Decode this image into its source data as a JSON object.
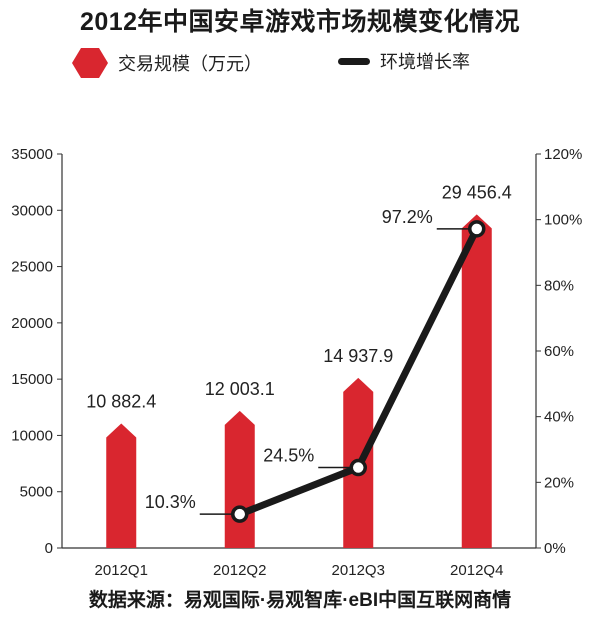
{
  "title": "2012年中国安卓游戏市场规模变化情况",
  "source": "数据来源：易观国际·易观智库·eBI中国互联网商情",
  "colors": {
    "bar": "#d9262f",
    "line": "#1a1a1a",
    "axis": "#333333"
  },
  "chart_data": {
    "type": "bar",
    "title": "2012年中国安卓游戏市场规模变化情况",
    "categories": [
      "2012Q1",
      "2012Q2",
      "2012Q3",
      "2012Q4"
    ],
    "series": [
      {
        "name": "交易规模（万元）",
        "type": "bar",
        "axis": "left",
        "values": [
          10882.4,
          12003.1,
          14937.9,
          29456.4
        ],
        "labels": [
          "10 882.4",
          "12 003.1",
          "14 937.9",
          "29 456.4"
        ]
      },
      {
        "name": "环境增长率",
        "type": "line",
        "axis": "right",
        "values": [
          null,
          10.3,
          24.5,
          97.2
        ],
        "labels": [
          "",
          "10.3%",
          "24.5%",
          "97.2%"
        ]
      }
    ],
    "left_axis": {
      "ylim": [
        0,
        35000
      ],
      "ticks": [
        "0",
        "5000",
        "10000",
        "15000",
        "20000",
        "25000",
        "30000",
        "35000"
      ]
    },
    "right_axis": {
      "ylim": [
        0,
        120
      ],
      "ticks": [
        "0%",
        "20%",
        "40%",
        "60%",
        "80%",
        "100%",
        "120%"
      ]
    },
    "legend_position": "top",
    "grid": false
  }
}
